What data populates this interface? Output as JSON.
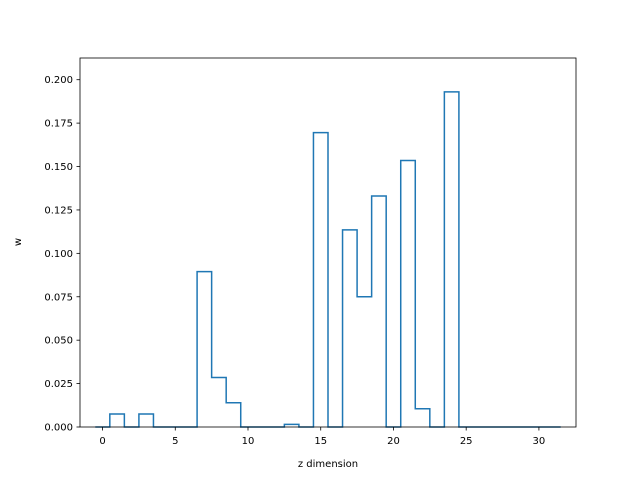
{
  "chart_data": {
    "type": "bar",
    "style": "step-histogram",
    "title": "",
    "xlabel": "z dimension",
    "ylabel": "w",
    "xlim": [
      -1.55,
      32.55
    ],
    "ylim": [
      0,
      0.2125
    ],
    "xticks": [
      0,
      5,
      10,
      15,
      20,
      25,
      30
    ],
    "xtick_labels": [
      "0",
      "5",
      "10",
      "15",
      "20",
      "25",
      "30"
    ],
    "yticks": [
      0,
      0.025,
      0.05,
      0.075,
      0.1,
      0.125,
      0.15,
      0.175,
      0.2
    ],
    "ytick_labels": [
      "0.000",
      "0.025",
      "0.050",
      "0.075",
      "0.100",
      "0.125",
      "0.150",
      "0.175",
      "0.200"
    ],
    "categories": [
      0,
      1,
      2,
      3,
      4,
      5,
      6,
      7,
      8,
      9,
      10,
      11,
      12,
      13,
      14,
      15,
      16,
      17,
      18,
      19,
      20,
      21,
      22,
      23,
      24,
      25,
      26,
      27,
      28,
      29,
      30,
      31
    ],
    "values": [
      0,
      0.0075,
      0,
      0.0075,
      0,
      0,
      0,
      0.0895,
      0.0285,
      0.014,
      0,
      0,
      0,
      0.0015,
      0,
      0.1695,
      0,
      0.1135,
      0.075,
      0.133,
      0,
      0.1535,
      0.0105,
      0,
      0.193,
      0,
      0,
      0,
      0,
      0,
      0,
      0
    ],
    "grid": false,
    "colors": {
      "line": "#1f77b4"
    }
  }
}
